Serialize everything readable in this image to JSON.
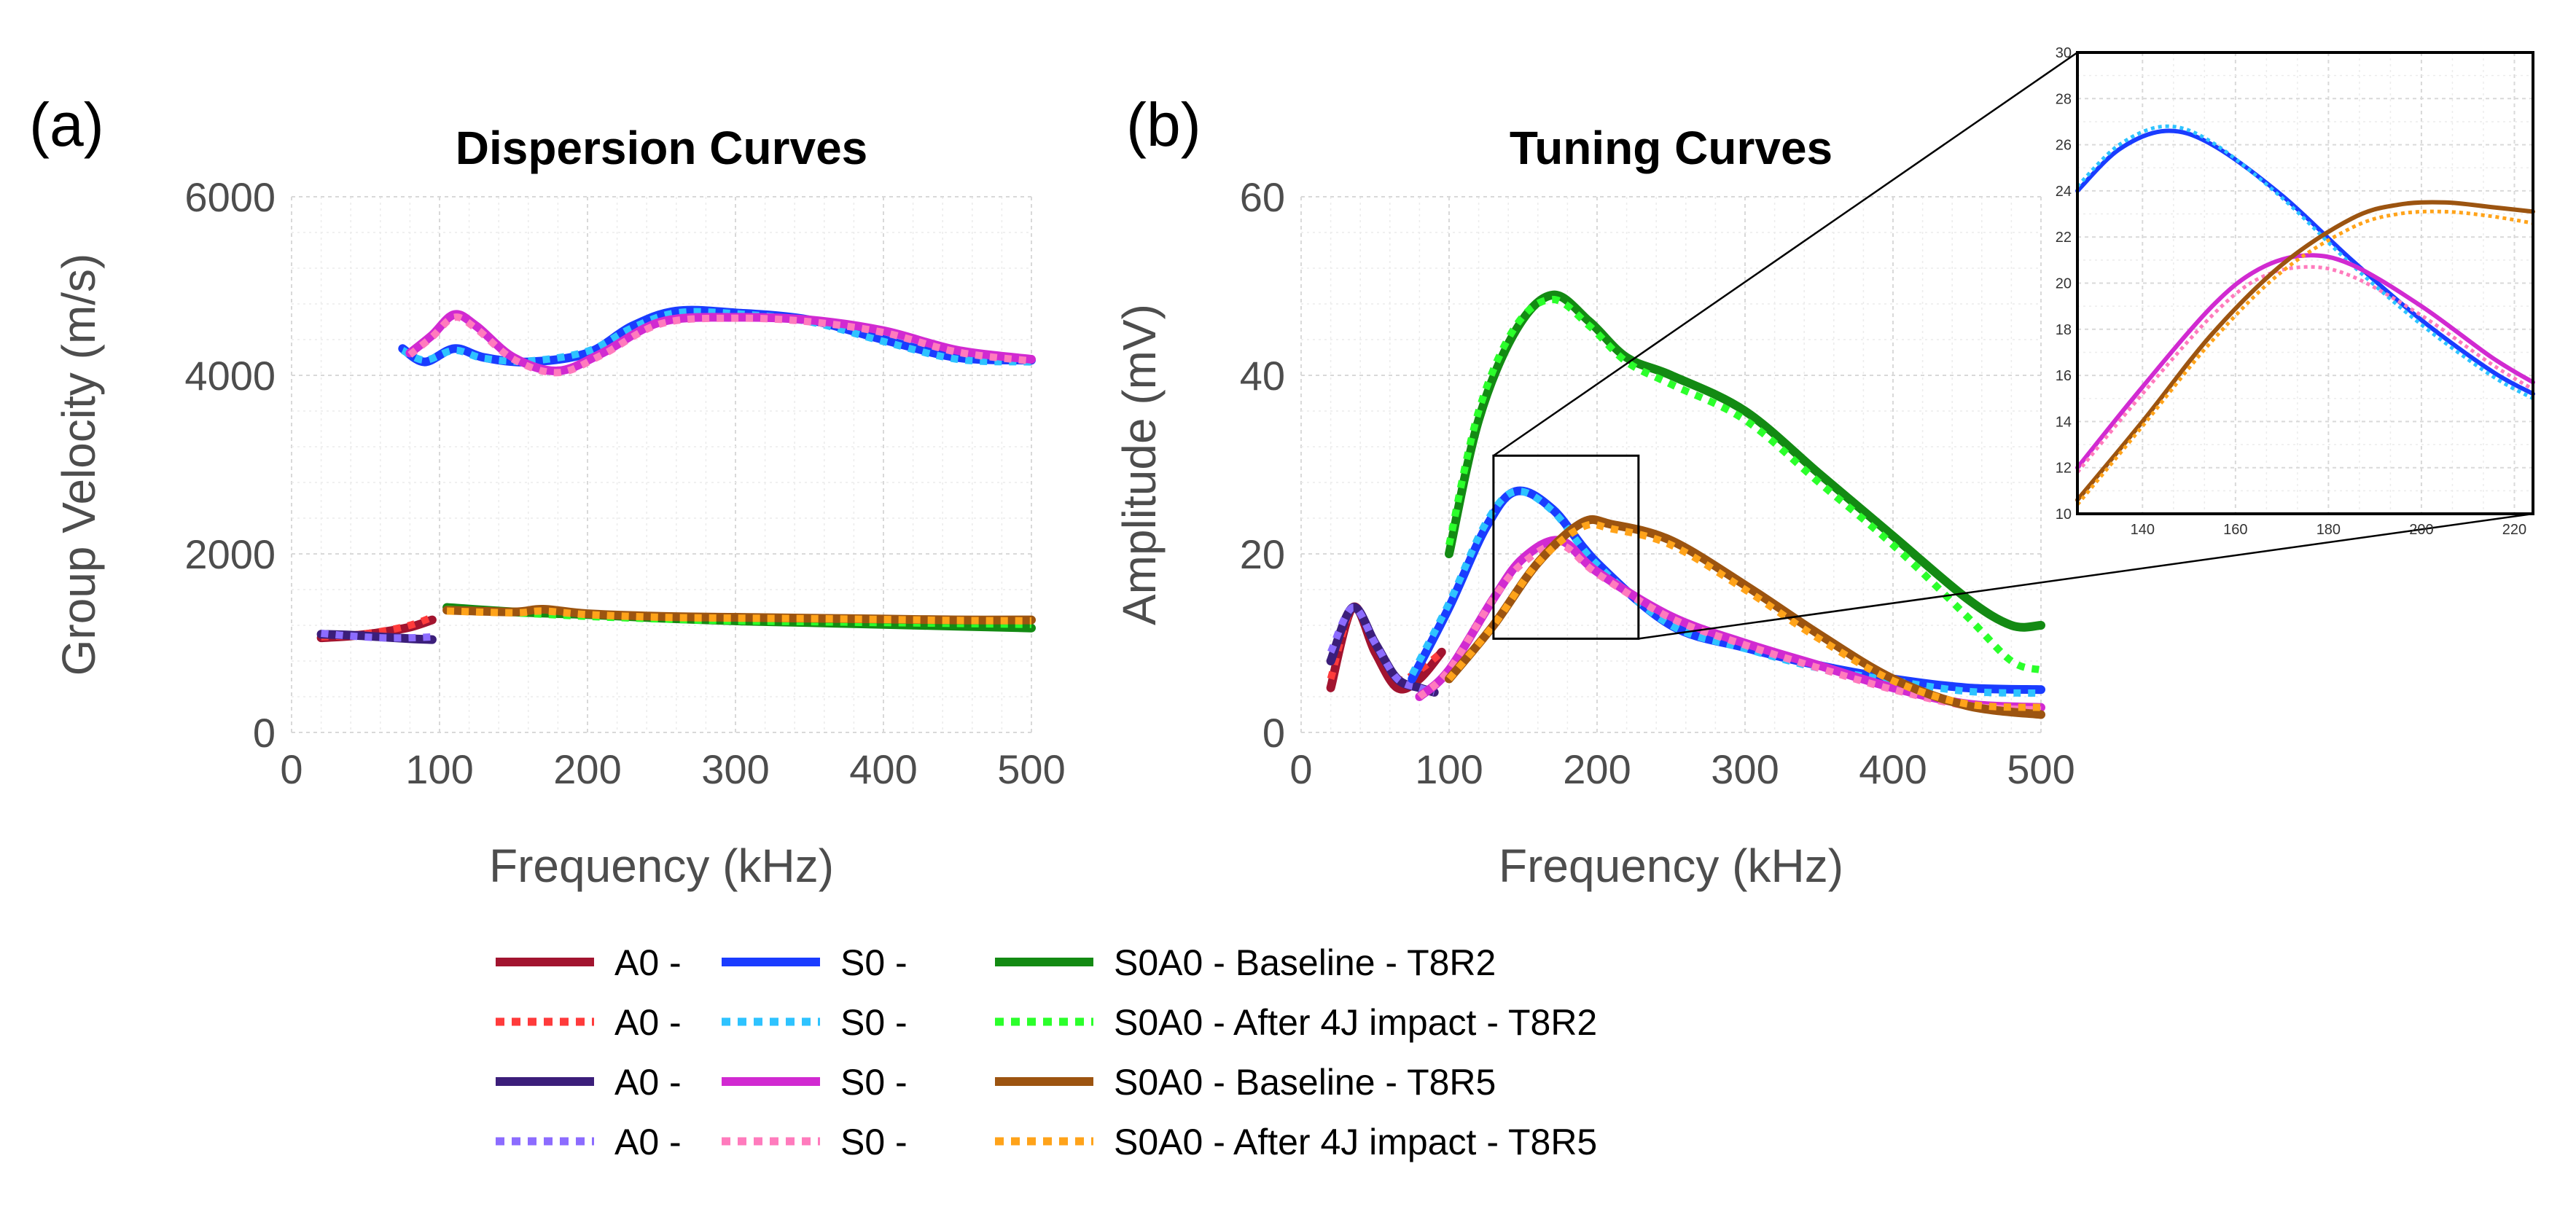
{
  "figure": {
    "panel_a_label": "(a)",
    "panel_b_label": "(b)"
  },
  "chart_data": [
    {
      "id": "dispersion",
      "type": "line",
      "title": "Dispersion Curves",
      "xlabel": "Frequency (kHz)",
      "ylabel": "Group Velocity (m/s)",
      "xlim": [
        0,
        500
      ],
      "ylim": [
        0,
        6000
      ],
      "xticks": [
        0,
        100,
        200,
        300,
        400,
        500
      ],
      "yticks": [
        0,
        2000,
        4000,
        6000
      ],
      "xtick_labels": [
        "0",
        "100",
        "200",
        "300",
        "400",
        "500"
      ],
      "ytick_labels": [
        "0",
        "2000",
        "4000",
        "6000"
      ],
      "series": [
        {
          "key": "a0_1",
          "x": [
            20,
            40,
            60,
            80,
            95
          ],
          "y": [
            1060,
            1080,
            1120,
            1180,
            1260
          ]
        },
        {
          "key": "a0_2",
          "x": [
            20,
            40,
            60,
            80,
            95
          ],
          "y": [
            1070,
            1090,
            1130,
            1200,
            1290
          ]
        },
        {
          "key": "a0_3",
          "x": [
            20,
            40,
            60,
            80,
            95
          ],
          "y": [
            1100,
            1090,
            1070,
            1050,
            1040
          ]
        },
        {
          "key": "a0_4",
          "x": [
            20,
            40,
            60,
            80,
            95
          ],
          "y": [
            1110,
            1080,
            1060,
            1060,
            1070
          ]
        },
        {
          "key": "s0_1",
          "x": [
            75,
            90,
            110,
            130,
            160,
            200,
            230,
            260,
            300,
            350,
            400,
            450,
            500
          ],
          "y": [
            4300,
            4150,
            4300,
            4200,
            4150,
            4250,
            4550,
            4720,
            4700,
            4620,
            4400,
            4200,
            4170
          ]
        },
        {
          "key": "s0_2",
          "x": [
            75,
            90,
            110,
            130,
            160,
            200,
            230,
            260,
            300,
            350,
            400,
            450,
            500
          ],
          "y": [
            4280,
            4170,
            4280,
            4190,
            4160,
            4270,
            4530,
            4700,
            4690,
            4600,
            4380,
            4180,
            4150
          ]
        },
        {
          "key": "s0_3",
          "x": [
            80,
            95,
            110,
            125,
            150,
            180,
            210,
            250,
            300,
            350,
            400,
            450,
            500
          ],
          "y": [
            4250,
            4450,
            4680,
            4550,
            4200,
            4050,
            4250,
            4600,
            4650,
            4620,
            4500,
            4280,
            4180
          ]
        },
        {
          "key": "s0_4",
          "x": [
            80,
            95,
            110,
            125,
            150,
            180,
            210,
            250,
            300,
            350,
            400,
            450,
            500
          ],
          "y": [
            4230,
            4430,
            4650,
            4520,
            4180,
            4030,
            4230,
            4580,
            4640,
            4600,
            4480,
            4260,
            4160
          ]
        },
        {
          "key": "s0a0_1",
          "x": [
            105,
            150,
            200,
            250,
            300,
            350,
            400,
            450,
            500
          ],
          "y": [
            1400,
            1350,
            1320,
            1280,
            1250,
            1230,
            1210,
            1190,
            1170
          ]
        },
        {
          "key": "s0a0_2",
          "x": [
            105,
            150,
            200,
            250,
            300,
            350,
            400,
            450,
            500
          ],
          "y": [
            1380,
            1340,
            1300,
            1270,
            1250,
            1240,
            1230,
            1220,
            1210
          ]
        },
        {
          "key": "s0a0_3",
          "x": [
            105,
            150,
            170,
            200,
            250,
            300,
            350,
            400,
            450,
            500
          ],
          "y": [
            1370,
            1350,
            1380,
            1330,
            1300,
            1290,
            1280,
            1270,
            1260,
            1260
          ]
        },
        {
          "key": "s0a0_4",
          "x": [
            105,
            150,
            170,
            200,
            250,
            300,
            350,
            400,
            450,
            500
          ],
          "y": [
            1360,
            1340,
            1360,
            1320,
            1290,
            1280,
            1275,
            1265,
            1255,
            1250
          ]
        }
      ]
    },
    {
      "id": "tuning",
      "type": "line",
      "title": "Tuning Curves",
      "xlabel": "Frequency (kHz)",
      "ylabel": "Amplitude (mV)",
      "xlim": [
        0,
        500
      ],
      "ylim": [
        0,
        60
      ],
      "xticks": [
        0,
        100,
        200,
        300,
        400,
        500
      ],
      "yticks": [
        0,
        20,
        40,
        60
      ],
      "xtick_labels": [
        "0",
        "100",
        "200",
        "300",
        "400",
        "500"
      ],
      "ytick_labels": [
        "0",
        "20",
        "40",
        "60"
      ],
      "zoom_box": {
        "x": [
          130,
          228
        ],
        "y": [
          10.5,
          31
        ]
      },
      "series": [
        {
          "key": "a0_1",
          "x": [
            20,
            35,
            50,
            65,
            80,
            95
          ],
          "y": [
            5,
            14,
            9,
            5,
            6,
            9
          ]
        },
        {
          "key": "a0_2",
          "x": [
            20,
            35,
            50,
            65,
            80,
            95
          ],
          "y": [
            6,
            14,
            10,
            6,
            7,
            9
          ]
        },
        {
          "key": "a0_3",
          "x": [
            20,
            35,
            50,
            65,
            80,
            90
          ],
          "y": [
            8,
            14,
            10,
            6,
            5,
            4.5
          ]
        },
        {
          "key": "a0_4",
          "x": [
            20,
            35,
            50,
            65,
            80,
            90
          ],
          "y": [
            9,
            14,
            10,
            6,
            5,
            4.5
          ]
        },
        {
          "key": "s0_1",
          "x": [
            75,
            100,
            125,
            145,
            170,
            200,
            250,
            300,
            350,
            400,
            450,
            500
          ],
          "y": [
            6,
            14,
            23,
            27,
            25,
            19,
            12,
            9.5,
            7.5,
            6,
            5,
            4.8
          ]
        },
        {
          "key": "s0_2",
          "x": [
            75,
            100,
            125,
            145,
            170,
            200,
            250,
            300,
            350,
            400,
            450,
            500
          ],
          "y": [
            6.5,
            14.5,
            23.5,
            27,
            24.8,
            18.8,
            12,
            9.4,
            7.2,
            5.8,
            4.6,
            4.4
          ]
        },
        {
          "key": "s0_3",
          "x": [
            80,
            100,
            130,
            150,
            175,
            200,
            250,
            300,
            350,
            400,
            450,
            500
          ],
          "y": [
            4,
            7,
            15,
            19.5,
            21.5,
            18,
            13,
            10,
            7.5,
            5,
            3.2,
            2.8
          ]
        },
        {
          "key": "s0_4",
          "x": [
            80,
            100,
            130,
            150,
            175,
            200,
            250,
            300,
            350,
            400,
            450,
            500
          ],
          "y": [
            4,
            7,
            15,
            19,
            21,
            17.8,
            12.8,
            9.8,
            7.2,
            4.8,
            3,
            2.5
          ]
        },
        {
          "key": "s0a0_1",
          "x": [
            100,
            120,
            145,
            170,
            195,
            220,
            250,
            300,
            350,
            400,
            450,
            480,
            500
          ],
          "y": [
            20,
            35,
            45,
            49,
            46,
            42,
            40,
            36,
            29,
            22,
            15,
            12,
            12
          ]
        },
        {
          "key": "s0a0_2",
          "x": [
            100,
            120,
            145,
            170,
            195,
            220,
            250,
            300,
            350,
            400,
            450,
            480,
            500
          ],
          "y": [
            21,
            36,
            45.5,
            48.5,
            45.5,
            41.5,
            39,
            35,
            28,
            21,
            13,
            8,
            7
          ]
        },
        {
          "key": "s0a0_3",
          "x": [
            100,
            130,
            160,
            190,
            210,
            250,
            300,
            350,
            400,
            450,
            500
          ],
          "y": [
            6,
            12,
            19,
            23.5,
            23.3,
            21.5,
            16.5,
            11,
            6,
            3,
            2
          ]
        },
        {
          "key": "s0a0_4",
          "x": [
            100,
            130,
            160,
            190,
            210,
            250,
            300,
            350,
            400,
            450,
            500
          ],
          "y": [
            6,
            12,
            19,
            23,
            22.8,
            21,
            16,
            10.5,
            5.8,
            3.2,
            2.8
          ]
        }
      ]
    },
    {
      "id": "inset",
      "type": "line",
      "title": "",
      "xlabel": "",
      "ylabel": "",
      "xlim": [
        126,
        224
      ],
      "ylim": [
        10,
        30
      ],
      "xticks": [
        140,
        160,
        180,
        200,
        220
      ],
      "yticks": [
        10,
        12,
        14,
        16,
        18,
        20,
        22,
        24,
        26,
        28,
        30
      ],
      "xtick_labels": [
        "140",
        "160",
        "180",
        "200",
        "220"
      ],
      "ytick_labels": [
        "10",
        "12",
        "14",
        "16",
        "18",
        "20",
        "22",
        "24",
        "26",
        "28",
        "30"
      ],
      "series": [
        {
          "key": "s0_1",
          "x": [
            126,
            135,
            145,
            155,
            170,
            185,
            200,
            215,
            224
          ],
          "y": [
            24,
            25.8,
            26.6,
            26,
            23.8,
            21,
            18.4,
            16.2,
            15.2
          ]
        },
        {
          "key": "s0_2",
          "x": [
            126,
            135,
            145,
            155,
            170,
            185,
            200,
            215,
            224
          ],
          "y": [
            24.2,
            26,
            26.8,
            26.1,
            23.7,
            20.8,
            18.2,
            16,
            15
          ]
        },
        {
          "key": "s0_3",
          "x": [
            126,
            140,
            155,
            165,
            175,
            185,
            200,
            215,
            224
          ],
          "y": [
            12,
            15.5,
            19,
            20.6,
            21.2,
            20.8,
            19,
            16.8,
            15.7
          ]
        },
        {
          "key": "s0_4",
          "x": [
            126,
            140,
            155,
            165,
            175,
            185,
            200,
            215,
            224
          ],
          "y": [
            11.8,
            15.2,
            18.6,
            20.2,
            20.7,
            20.3,
            18.6,
            16.5,
            15.4
          ]
        },
        {
          "key": "s0a0_3",
          "x": [
            126,
            140,
            155,
            170,
            185,
            195,
            205,
            215,
            224
          ],
          "y": [
            10.6,
            14,
            17.8,
            20.8,
            22.8,
            23.4,
            23.5,
            23.3,
            23.1
          ]
        },
        {
          "key": "s0a0_4",
          "x": [
            126,
            140,
            155,
            170,
            185,
            195,
            205,
            215,
            224
          ],
          "y": [
            10.4,
            13.8,
            17.5,
            20.5,
            22.4,
            23,
            23.1,
            22.9,
            22.6
          ]
        }
      ]
    }
  ],
  "styles": {
    "a0_1": {
      "color": "#a2142f",
      "dash": false
    },
    "a0_2": {
      "color": "#ff3b3b",
      "dash": true
    },
    "a0_3": {
      "color": "#3b1e7a",
      "dash": false
    },
    "a0_4": {
      "color": "#8c6cff",
      "dash": true
    },
    "s0_1": {
      "color": "#1a3cff",
      "dash": false
    },
    "s0_2": {
      "color": "#2ec3ff",
      "dash": true
    },
    "s0_3": {
      "color": "#d12ad1",
      "dash": false
    },
    "s0_4": {
      "color": "#ff7bbd",
      "dash": true
    },
    "s0a0_1": {
      "color": "#138a13",
      "dash": false
    },
    "s0a0_2": {
      "color": "#2bff2b",
      "dash": true
    },
    "s0a0_3": {
      "color": "#9c5410",
      "dash": false
    },
    "s0a0_4": {
      "color": "#ffa31a",
      "dash": true
    }
  },
  "legend": {
    "columns": [
      [
        {
          "key": "a0_1",
          "label": "A0 -"
        },
        {
          "key": "a0_2",
          "label": "A0 -"
        },
        {
          "key": "a0_3",
          "label": "A0 -"
        },
        {
          "key": "a0_4",
          "label": "A0 -"
        }
      ],
      [
        {
          "key": "s0_1",
          "label": "S0 -"
        },
        {
          "key": "s0_2",
          "label": "S0 -"
        },
        {
          "key": "s0_3",
          "label": "S0 -"
        },
        {
          "key": "s0_4",
          "label": "S0 -"
        }
      ],
      [
        {
          "key": "s0a0_1",
          "label": "S0A0 - Baseline - T8R2"
        },
        {
          "key": "s0a0_2",
          "label": "S0A0 - After 4J impact - T8R2"
        },
        {
          "key": "s0a0_3",
          "label": "S0A0 - Baseline - T8R5"
        },
        {
          "key": "s0a0_4",
          "label": "S0A0 - After 4J impact - T8R5"
        }
      ]
    ]
  }
}
